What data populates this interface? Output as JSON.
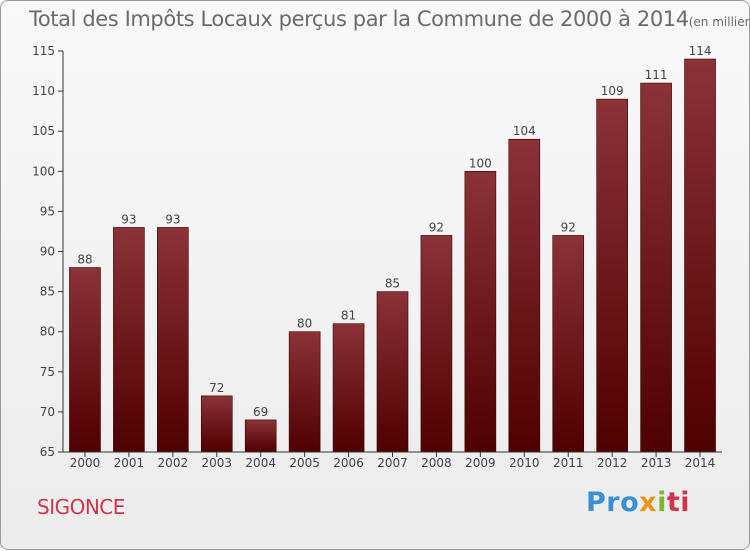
{
  "title": "Total des Impôts Locaux perçus par la Commune de 2000 à 2014",
  "title_unit": "(en milliers d'€)",
  "commune": "SIGONCE",
  "logo": {
    "part1": "Pro",
    "part2": "x",
    "part3": "i",
    "part4": "ti"
  },
  "colors": {
    "bar_top": "#8a3238",
    "bar_bottom": "#4f0000",
    "commune_text": "#d1354b"
  },
  "chart_data": {
    "type": "bar",
    "categories": [
      "2000",
      "2001",
      "2002",
      "2003",
      "2004",
      "2005",
      "2006",
      "2007",
      "2008",
      "2009",
      "2010",
      "2011",
      "2012",
      "2013",
      "2014"
    ],
    "values": [
      88,
      93,
      93,
      72,
      69,
      80,
      81,
      85,
      92,
      100,
      104,
      92,
      109,
      111,
      114
    ],
    "ylim": [
      65,
      115
    ],
    "yticks": [
      65,
      70,
      75,
      80,
      85,
      90,
      95,
      100,
      105,
      110,
      115
    ],
    "title": "Total des Impôts Locaux perçus par la Commune de 2000 à 2014",
    "xlabel": "",
    "ylabel": "",
    "grid": false,
    "legend": "none"
  }
}
